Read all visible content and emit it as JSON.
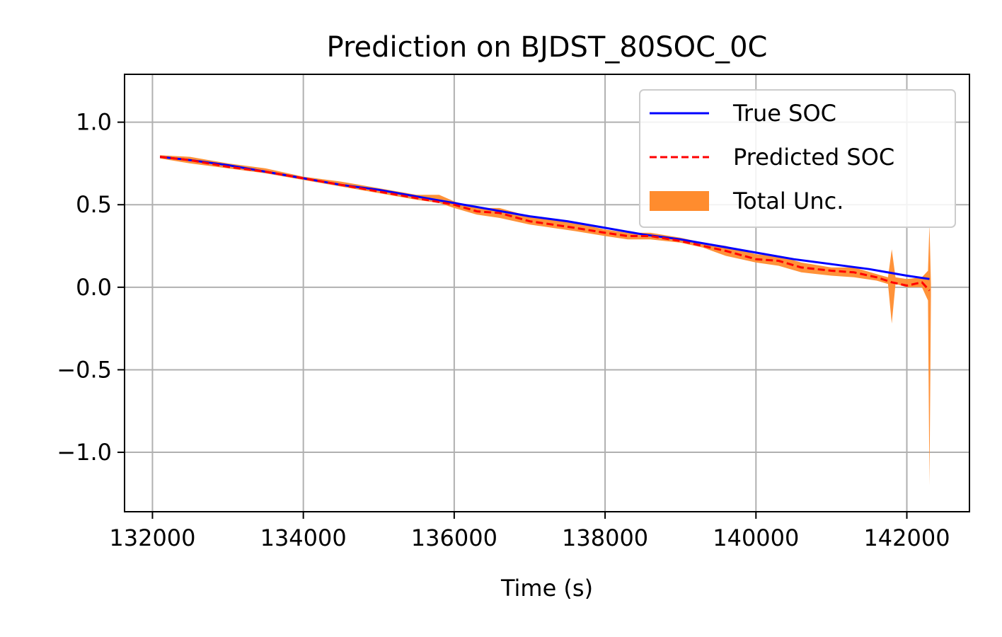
{
  "chart_data": {
    "type": "line",
    "title": "Prediction on BJDST_80SOC_0C",
    "xlabel": "Time (s)",
    "ylabel": "",
    "xlim": [
      131630,
      142830
    ],
    "ylim": [
      -1.36,
      1.29
    ],
    "xticks": [
      132000,
      134000,
      136000,
      138000,
      140000,
      142000
    ],
    "xtick_labels": [
      "132000",
      "134000",
      "136000",
      "138000",
      "140000",
      "142000"
    ],
    "yticks": [
      1.0,
      0.5,
      0.0,
      -0.5,
      -1.0
    ],
    "ytick_labels": [
      "1.0",
      "0.5",
      "0.0",
      "−0.5",
      "−1.0"
    ],
    "grid": true,
    "legend_position": "top-right",
    "series": [
      {
        "name": "True SOC",
        "style": "solid",
        "color": "#0000ff",
        "x": [
          132100,
          132500,
          133000,
          133500,
          134000,
          134500,
          135000,
          135500,
          136000,
          136500,
          137000,
          137500,
          138000,
          138500,
          139000,
          139500,
          140000,
          140500,
          141000,
          141500,
          142000,
          142300
        ],
        "y": [
          0.79,
          0.77,
          0.74,
          0.7,
          0.66,
          0.62,
          0.59,
          0.55,
          0.51,
          0.47,
          0.43,
          0.4,
          0.36,
          0.32,
          0.29,
          0.25,
          0.21,
          0.17,
          0.14,
          0.11,
          0.07,
          0.05
        ]
      },
      {
        "name": "Predicted SOC",
        "style": "dashed",
        "color": "#ff0000",
        "x": [
          132100,
          132500,
          133000,
          133500,
          134000,
          134500,
          135000,
          135500,
          136000,
          136300,
          136600,
          137000,
          137300,
          137600,
          138000,
          138300,
          138600,
          139000,
          139300,
          139600,
          140000,
          140300,
          140600,
          141000,
          141300,
          141600,
          141800,
          142000,
          142100,
          142200,
          142300
        ],
        "y": [
          0.79,
          0.77,
          0.73,
          0.7,
          0.66,
          0.62,
          0.58,
          0.54,
          0.5,
          0.46,
          0.45,
          0.4,
          0.38,
          0.36,
          0.33,
          0.31,
          0.31,
          0.28,
          0.25,
          0.22,
          0.17,
          0.16,
          0.12,
          0.1,
          0.09,
          0.06,
          0.03,
          0.01,
          0.02,
          0.03,
          -0.02
        ]
      }
    ],
    "uncertainty_band": {
      "name": "Total Unc.",
      "color": "#ff8c2e",
      "x": [
        132100,
        132500,
        133000,
        133500,
        134000,
        134500,
        135000,
        135500,
        135800,
        136000,
        136300,
        136600,
        137000,
        137300,
        137600,
        138000,
        138300,
        138600,
        139000,
        139300,
        139600,
        140000,
        140300,
        140600,
        141000,
        141300,
        141600,
        141750,
        141800,
        141850,
        142000,
        142200,
        142280,
        142300,
        142320
      ],
      "lower": [
        0.78,
        0.75,
        0.72,
        0.69,
        0.65,
        0.61,
        0.57,
        0.53,
        0.51,
        0.48,
        0.44,
        0.42,
        0.38,
        0.36,
        0.34,
        0.31,
        0.29,
        0.29,
        0.27,
        0.24,
        0.19,
        0.15,
        0.13,
        0.09,
        0.07,
        0.06,
        0.04,
        0.02,
        -0.22,
        0.02,
        0.0,
        0.0,
        -0.08,
        -1.2,
        -0.05
      ],
      "upper": [
        0.8,
        0.79,
        0.75,
        0.72,
        0.67,
        0.64,
        0.6,
        0.56,
        0.56,
        0.52,
        0.48,
        0.48,
        0.43,
        0.41,
        0.39,
        0.35,
        0.33,
        0.33,
        0.3,
        0.27,
        0.25,
        0.2,
        0.19,
        0.15,
        0.12,
        0.12,
        0.08,
        0.06,
        0.23,
        0.06,
        0.05,
        0.06,
        0.1,
        0.38,
        0.02
      ]
    }
  }
}
